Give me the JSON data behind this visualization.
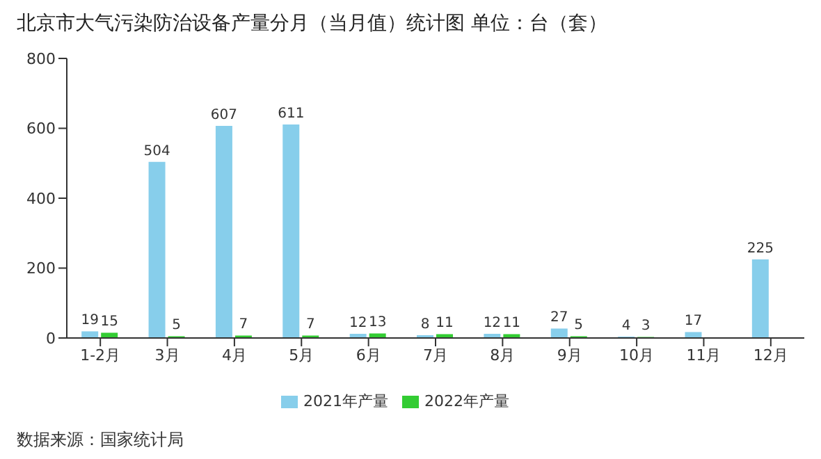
{
  "chart_data": {
    "type": "bar",
    "title": "北京市大气污染防治设备产量分月（当月值）统计图 单位：台（套）",
    "categories": [
      "1-2月",
      "3月",
      "4月",
      "5月",
      "6月",
      "7月",
      "8月",
      "9月",
      "10月",
      "11月",
      "12月"
    ],
    "series": [
      {
        "name": "2021年产量",
        "color": "#87ceeb",
        "values": [
          19,
          504,
          607,
          611,
          12,
          8,
          12,
          27,
          4,
          17,
          225
        ]
      },
      {
        "name": "2022年产量",
        "color": "#33cc33",
        "values": [
          15,
          5,
          7,
          7,
          13,
          11,
          11,
          5,
          3,
          null,
          null
        ]
      }
    ],
    "ylim": [
      0,
      800
    ],
    "yticks": [
      0,
      200,
      400,
      600,
      800
    ],
    "grid": false,
    "legend": "bottom",
    "data_labels": true,
    "annotations": [
      "数据来源：国家统计局"
    ]
  }
}
